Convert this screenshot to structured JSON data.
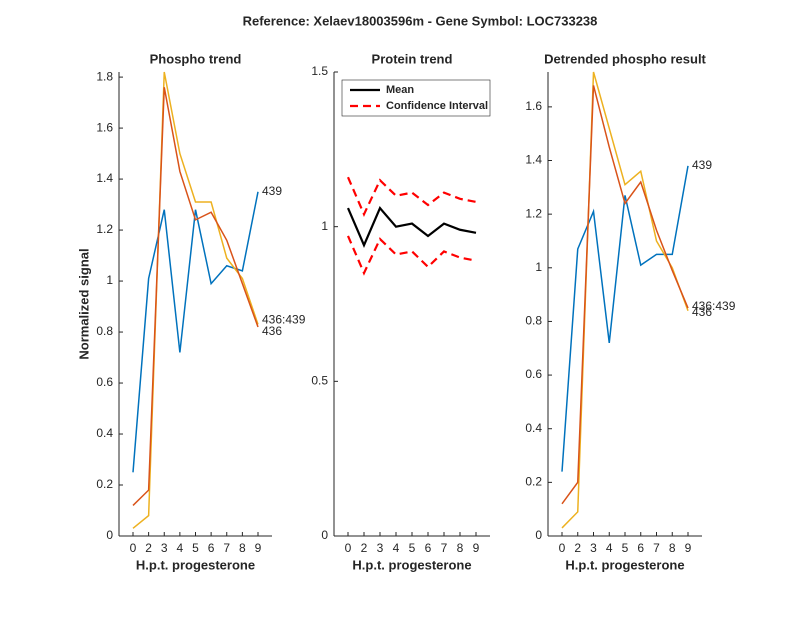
{
  "title": "Reference:  Xelaev18003596m - Gene Symbol:  LOC733238",
  "chart_data": [
    {
      "type": "line",
      "title": "Phospho trend",
      "xlabel": "H.p.t. progesterone",
      "ylabel": "Normalized signal",
      "categories": [
        "0",
        "2",
        "3",
        "4",
        "5",
        "6",
        "7",
        "8",
        "9"
      ],
      "ylim": [
        0,
        1.82
      ],
      "yticks": [
        0,
        0.2,
        0.4,
        0.6,
        0.8,
        1,
        1.2,
        1.4,
        1.6,
        1.8
      ],
      "series": [
        {
          "color": "#0072bd",
          "values": [
            0.25,
            1.01,
            1.28,
            0.72,
            1.28,
            0.99,
            1.06,
            1.04,
            1.35
          ]
        },
        {
          "color": "#edb120",
          "values": [
            0.03,
            0.08,
            1.82,
            1.5,
            1.31,
            1.31,
            1.09,
            1.01,
            0.83
          ]
        },
        {
          "color": "#d95319",
          "values": [
            0.12,
            0.18,
            1.76,
            1.43,
            1.24,
            1.27,
            1.16,
            0.99,
            0.82
          ]
        }
      ],
      "annotations": [
        "439",
        "436:439",
        "436"
      ]
    },
    {
      "type": "band",
      "title": "Protein trend",
      "xlabel": "H.p.t. progesterone",
      "categories": [
        "0",
        "2",
        "3",
        "4",
        "5",
        "6",
        "7",
        "8",
        "9"
      ],
      "ylim": [
        0,
        1.5
      ],
      "yticks": [
        0,
        0.5,
        1,
        1.5
      ],
      "series": [
        {
          "name": "Mean",
          "color": "#000000",
          "values": [
            1.06,
            0.94,
            1.06,
            1.0,
            1.01,
            0.97,
            1.01,
            0.99,
            0.98
          ]
        },
        {
          "name": "Confidence Interval",
          "color": "#ff0000",
          "values": [
            1.16,
            1.04,
            1.15,
            1.1,
            1.11,
            1.07,
            1.11,
            1.09,
            1.08
          ],
          "lower": [
            0.97,
            0.85,
            0.96,
            0.91,
            0.92,
            0.87,
            0.92,
            0.9,
            0.89
          ]
        }
      ],
      "legend": "upper-left"
    },
    {
      "type": "line",
      "title": "Detrended phospho result",
      "xlabel": "H.p.t. progesterone",
      "categories": [
        "0",
        "2",
        "3",
        "4",
        "5",
        "6",
        "7",
        "8",
        "9"
      ],
      "ylim": [
        0,
        1.73
      ],
      "yticks": [
        0,
        0.2,
        0.4,
        0.6,
        0.8,
        1,
        1.2,
        1.4,
        1.6
      ],
      "series": [
        {
          "color": "#0072bd",
          "values": [
            0.24,
            1.07,
            1.21,
            0.72,
            1.27,
            1.01,
            1.05,
            1.05,
            1.38
          ]
        },
        {
          "color": "#edb120",
          "values": [
            0.03,
            0.09,
            1.73,
            1.52,
            1.31,
            1.36,
            1.1,
            1.0,
            0.84
          ]
        },
        {
          "color": "#d95319",
          "values": [
            0.12,
            0.2,
            1.68,
            1.45,
            1.24,
            1.32,
            1.14,
            0.99,
            0.85
          ]
        }
      ],
      "annotations": [
        "439",
        "436:439",
        "436"
      ]
    }
  ]
}
